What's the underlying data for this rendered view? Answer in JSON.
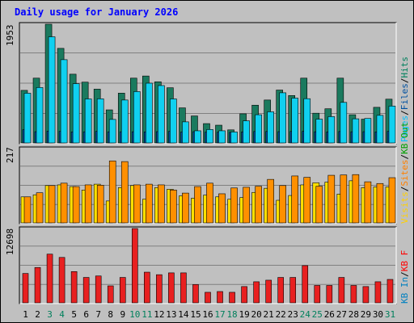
{
  "chart_data": [
    {
      "type": "bar",
      "title": "Daily usage for January 2026",
      "panel": "top",
      "y_max_label": "1953",
      "ylim": [
        0,
        1953
      ],
      "grid": true,
      "legend": "right",
      "categories": [
        "1",
        "2",
        "3",
        "4",
        "5",
        "6",
        "7",
        "8",
        "9",
        "10",
        "11",
        "12",
        "13",
        "14",
        "15",
        "16",
        "17",
        "18",
        "19",
        "20",
        "21",
        "22",
        "23",
        "24",
        "25",
        "26",
        "27",
        "28",
        "29",
        "30",
        "31"
      ],
      "series": [
        {
          "name": "Hits",
          "color": "#007050",
          "values": [
            865,
            1066,
            1953,
            1556,
            1131,
            1000,
            885,
            544,
            819,
            1066,
            1101,
            1006,
            908,
            577,
            444,
            318,
            292,
            215,
            479,
            621,
            706,
            870,
            780,
            1066,
            489,
            562,
            1066,
            464,
            391,
            586,
            720
          ]
        },
        {
          "name": "Files",
          "color": "#0050a0",
          "values": [
            218,
            185,
            193,
            190,
            181,
            183,
            190,
            183,
            184,
            184,
            182,
            186,
            190,
            180,
            185,
            177,
            177,
            175,
            182,
            188,
            189,
            186,
            189,
            190,
            184,
            180,
            188,
            184,
            185,
            181,
            190
          ]
        },
        {
          "name": "Pages",
          "color": "#00d0f8",
          "values": [
            818,
            912,
            1746,
            1370,
            975,
            724,
            726,
            387,
            706,
            845,
            983,
            944,
            724,
            347,
            200,
            221,
            200,
            180,
            364,
            464,
            512,
            825,
            737,
            728,
            391,
            433,
            667,
            397,
            403,
            454,
            607
          ]
        }
      ],
      "legend_labels": [
        "Pages",
        "Files",
        "Hits"
      ],
      "legend_separator": "/"
    },
    {
      "type": "bar",
      "panel": "middle",
      "y_max_label": "217",
      "ylim": [
        0,
        217
      ],
      "grid": true,
      "legend": "right",
      "categories": [
        "1",
        "2",
        "3",
        "4",
        "5",
        "6",
        "7",
        "8",
        "9",
        "10",
        "11",
        "12",
        "13",
        "14",
        "15",
        "16",
        "17",
        "18",
        "19",
        "20",
        "21",
        "22",
        "23",
        "24",
        "25",
        "26",
        "27",
        "28",
        "29",
        "30",
        "31"
      ],
      "series": [
        {
          "name": "Visits",
          "color": "#ffff00",
          "values": [
            76,
            82,
            109,
            111,
            106,
            96,
            113,
            64,
            103,
            109,
            69,
            103,
            98,
            79,
            72,
            81,
            76,
            69,
            74,
            89,
            101,
            66,
            80,
            111,
            117,
            119,
            84,
            123,
            103,
            105,
            105
          ]
        },
        {
          "name": "Sites",
          "color": "#ff8000",
          "values": [
            76,
            88,
            109,
            116,
            106,
            111,
            110,
            181,
            179,
            111,
            113,
            111,
            96,
            87,
            106,
            116,
            85,
            102,
            104,
            107,
            127,
            109,
            137,
            133,
            107,
            139,
            140,
            141,
            120,
            115,
            132
          ]
        }
      ],
      "legend_labels": [
        "Visits",
        "Sites",
        "KB Out"
      ],
      "legend_separator": "/"
    },
    {
      "type": "bar",
      "panel": "bottom",
      "y_max_label": "12698",
      "ylim": [
        0,
        12698
      ],
      "grid": true,
      "legend": "right",
      "categories": [
        "1",
        "2",
        "3",
        "4",
        "5",
        "6",
        "7",
        "8",
        "9",
        "10",
        "11",
        "12",
        "13",
        "14",
        "15",
        "16",
        "17",
        "18",
        "19",
        "20",
        "21",
        "22",
        "23",
        "24",
        "25",
        "26",
        "27",
        "28",
        "29",
        "30",
        "31"
      ],
      "series": [
        {
          "name": "KB F",
          "color": "#ff0000",
          "values": [
            5020,
            6040,
            8320,
            7760,
            5340,
            4340,
            4590,
            2900,
            4340,
            12698,
            5240,
            4810,
            5120,
            5120,
            3130,
            1800,
            1930,
            1800,
            2780,
            3600,
            3870,
            4340,
            4340,
            6360,
            2970,
            2970,
            4340,
            2970,
            2780,
            3600,
            4000
          ]
        }
      ],
      "legend_labels": [
        "KB In",
        "KB F"
      ],
      "legend_separator": "/"
    }
  ],
  "day_labels": [
    "1",
    "2",
    "3",
    "4",
    "5",
    "6",
    "7",
    "8",
    "9",
    "10",
    "11",
    "12",
    "13",
    "14",
    "15",
    "16",
    "17",
    "18",
    "19",
    "20",
    "21",
    "22",
    "23",
    "24",
    "25",
    "26",
    "27",
    "28",
    "29",
    "30",
    "31"
  ],
  "weekend_days": [
    3,
    4,
    10,
    11,
    17,
    18,
    24,
    25,
    31
  ],
  "colors": {
    "panel_bg": "#c0c0c0",
    "title": "#0000ff",
    "weekday_label": "#000000",
    "weekend_label": "#00805c",
    "hits": "#00805c",
    "files": "#0050a0",
    "pages": "#00c0ff",
    "sites": "#ff8000",
    "visits": "#ffd000",
    "kbf": "#ff0000",
    "kbin": "#0080c0",
    "kbout": "#00a000"
  },
  "text": {
    "title": "Daily usage for January 2026",
    "top_max": "1953",
    "mid_max": "217",
    "bottom_max": "12698",
    "legend_top_pages": "Pages",
    "legend_top_files": "Files",
    "legend_top_hits": "Hits",
    "legend_mid_visits": "Visits",
    "legend_mid_sites": "Sites",
    "legend_mid_kbout": "KB Out",
    "legend_bot_kbin": "KB In",
    "legend_bot_kbf": "KB F",
    "sep": "/"
  }
}
